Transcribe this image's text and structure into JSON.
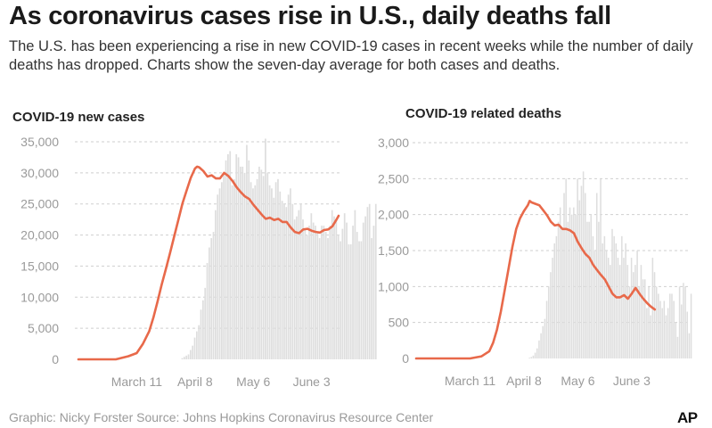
{
  "headline": "As coronavirus cases rise in U.S., daily deaths fall",
  "dek": "The U.S. has been experiencing a rise in new COVID-19 cases in recent weeks while the number of daily deaths has dropped. Charts show the seven-day average for both cases and deaths.",
  "credit": "Graphic: Nicky Forster  Source: Johns Hopkins Coronavirus Resource Center",
  "logo": "AP",
  "colors": {
    "bars": "#dedede",
    "line": "#e8694a",
    "ticks": "#9a9a9a"
  },
  "chart_data": [
    {
      "type": "bar",
      "title": "COVID-19 new cases",
      "xlabel": "",
      "ylabel": "",
      "ylim": [
        0,
        35000
      ],
      "yticks": [
        0,
        5000,
        10000,
        15000,
        20000,
        25000,
        30000,
        35000
      ],
      "ytick_labels": [
        "0",
        "5,000",
        "10,000",
        "15,000",
        "20,000",
        "25,000",
        "30,000",
        "35,000"
      ],
      "xticks": [
        {
          "day": 50,
          "label": "March 11"
        },
        {
          "day": 78,
          "label": "April 8"
        },
        {
          "day": 106,
          "label": "May 6"
        },
        {
          "day": 134,
          "label": "June 3"
        }
      ],
      "x_start_day": 22,
      "x_end_day": 147,
      "series": [
        {
          "kind": "bars",
          "values": [
            0,
            0,
            0,
            0,
            0,
            0,
            0,
            0,
            0,
            0,
            0,
            0,
            0,
            0,
            0,
            0,
            0,
            0,
            0,
            0,
            0,
            0,
            0,
            0,
            0,
            0,
            0,
            0,
            0,
            0,
            0,
            0,
            0,
            0,
            0,
            0,
            0,
            0,
            0,
            0,
            0,
            0,
            0,
            0,
            0,
            0,
            0,
            0,
            0,
            0,
            200,
            400,
            600,
            800,
            1500,
            2200,
            3500,
            4500,
            5500,
            8000,
            9500,
            11500,
            15500,
            18000,
            19500,
            20500,
            24000,
            26500,
            27500,
            28500,
            30000,
            32000,
            33000,
            33500,
            28000,
            29000,
            33000,
            32500,
            31000,
            31000,
            30000,
            34500,
            32000,
            28500,
            27500,
            28000,
            29000,
            31000,
            30500,
            29500,
            35500,
            30000,
            28000,
            27500,
            26000,
            28500,
            29000,
            27000,
            25500,
            25000,
            24500,
            26500,
            27500,
            25000,
            22500,
            23000,
            24000,
            25000,
            22500,
            21000,
            20000,
            21500,
            23500,
            22000,
            21500,
            20500,
            19500,
            21500,
            21500,
            20500,
            19500,
            21500,
            24000,
            23000,
            22500,
            20000,
            19000,
            21000,
            23500,
            22000,
            18500,
            18500,
            21500,
            24000,
            20500,
            19000,
            19000,
            22000,
            23000,
            24500,
            25000,
            19500,
            21500,
            25000
          ]
        },
        {
          "kind": "line",
          "label": "seven-day average",
          "x": [
            22,
            30,
            40,
            46,
            50,
            53,
            56,
            58,
            60,
            62,
            64,
            66,
            68,
            70,
            72,
            74,
            76,
            78,
            79,
            80,
            82,
            84,
            86,
            88,
            90,
            92,
            94,
            96,
            98,
            100,
            102,
            104,
            106,
            108,
            110,
            112,
            114,
            116,
            118,
            120,
            122,
            124,
            126,
            128,
            130,
            132,
            134,
            136,
            138,
            140,
            142,
            144,
            146,
            147
          ],
          "y": [
            0,
            0,
            0,
            500,
            1000,
            2500,
            4500,
            6700,
            9300,
            12000,
            14500,
            17100,
            19800,
            22400,
            25100,
            27200,
            29200,
            30700,
            31000,
            30900,
            30300,
            29400,
            29600,
            29100,
            29100,
            30000,
            29500,
            28700,
            27700,
            26900,
            26200,
            25800,
            24900,
            24100,
            23300,
            22600,
            22800,
            22400,
            22600,
            22100,
            22100,
            21200,
            20500,
            20300,
            20900,
            21000,
            20700,
            20500,
            20400,
            20800,
            20900,
            21400,
            22500,
            23100
          ]
        }
      ]
    },
    {
      "type": "bar",
      "title": "COVID-19 related deaths",
      "xlabel": "",
      "ylabel": "",
      "ylim": [
        0,
        3000
      ],
      "yticks": [
        0,
        500,
        1000,
        1500,
        2000,
        2500,
        3000
      ],
      "ytick_labels": [
        "0",
        "500",
        "1,000",
        "1,500",
        "2,000",
        "2,500",
        "3,000"
      ],
      "xticks": [
        {
          "day": 50,
          "label": "March 11"
        },
        {
          "day": 78,
          "label": "April 8"
        },
        {
          "day": 106,
          "label": "May 6"
        },
        {
          "day": 134,
          "label": "June 3"
        }
      ],
      "x_start_day": 22,
      "x_end_day": 147,
      "series": [
        {
          "kind": "bars",
          "values": [
            0,
            0,
            0,
            0,
            0,
            0,
            0,
            0,
            0,
            0,
            0,
            0,
            0,
            0,
            0,
            0,
            0,
            0,
            0,
            0,
            0,
            0,
            0,
            0,
            0,
            0,
            0,
            0,
            0,
            0,
            0,
            0,
            0,
            0,
            0,
            0,
            0,
            0,
            0,
            0,
            0,
            0,
            0,
            0,
            0,
            0,
            0,
            0,
            0,
            0,
            0,
            0,
            0,
            0,
            0,
            0,
            0,
            0,
            0,
            10,
            20,
            40,
            80,
            140,
            250,
            350,
            450,
            550,
            800,
            1000,
            1200,
            1400,
            1600,
            1700,
            1900,
            2100,
            1800,
            2300,
            2500,
            1900,
            2100,
            2000,
            2100,
            2000,
            2500,
            2200,
            2400,
            2600,
            2300,
            1900,
            1900,
            2000,
            1700,
            1500,
            2300,
            1900,
            2500,
            1600,
            1700,
            1500,
            1400,
            1300,
            1800,
            1700,
            1600,
            1400,
            1300,
            1700,
            1400,
            1600,
            1300,
            1000,
            1400,
            1200,
            1300,
            1500,
            1000,
            1300,
            1100,
            1100,
            700,
            1000,
            600,
            1400,
            1200,
            1000,
            900,
            800,
            700,
            800,
            600,
            700,
            900,
            900,
            800,
            500,
            300,
            1000,
            750,
            1050,
            1000,
            650,
            350,
            900
          ]
        },
        {
          "kind": "line",
          "label": "seven-day average",
          "x": [
            22,
            30,
            40,
            50,
            56,
            60,
            62,
            64,
            66,
            68,
            70,
            72,
            74,
            76,
            78,
            80,
            81,
            82,
            84,
            86,
            88,
            90,
            92,
            94,
            96,
            98,
            100,
            102,
            104,
            106,
            108,
            110,
            112,
            114,
            116,
            118,
            120,
            122,
            124,
            126,
            128,
            130,
            132,
            134,
            136,
            138,
            140,
            142,
            144,
            146
          ],
          "y": [
            0,
            0,
            0,
            0,
            30,
            100,
            220,
            400,
            650,
            950,
            1250,
            1550,
            1800,
            1950,
            2050,
            2130,
            2190,
            2170,
            2150,
            2130,
            2060,
            1990,
            1900,
            1850,
            1860,
            1800,
            1800,
            1780,
            1740,
            1620,
            1530,
            1450,
            1400,
            1300,
            1230,
            1160,
            1100,
            1000,
            900,
            850,
            850,
            880,
            830,
            900,
            980,
            900,
            830,
            770,
            720,
            680
          ]
        }
      ]
    }
  ]
}
